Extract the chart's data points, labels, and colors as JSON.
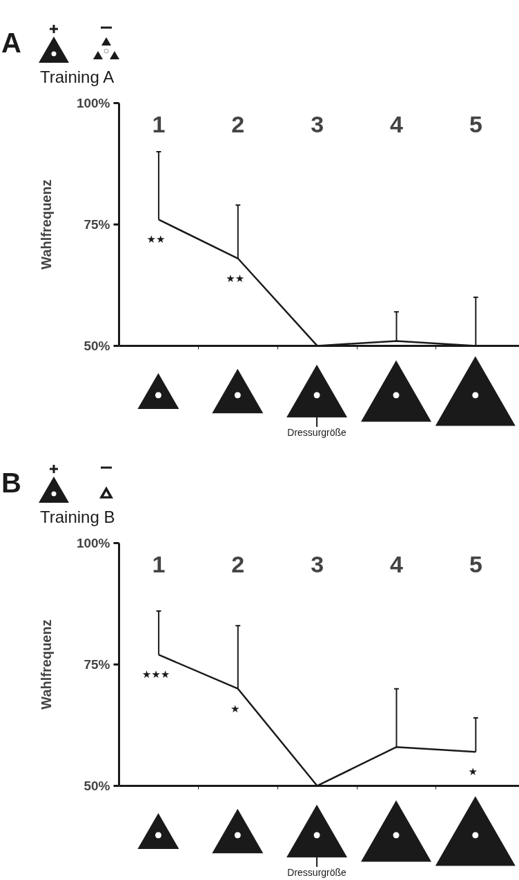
{
  "chart_data": [
    {
      "type": "line",
      "title": "A",
      "subtitle": "Training A",
      "ylabel": "Wahlfrequenz",
      "categories": [
        "1",
        "2",
        "3",
        "4",
        "5"
      ],
      "series": [
        {
          "color": "#1a1a1a",
          "values": [
            76,
            68,
            50,
            51,
            50
          ],
          "errors": [
            [
              76,
              90
            ],
            [
              68,
              79
            ],
            null,
            [
              51,
              57
            ],
            [
              50,
              60
            ]
          ]
        }
      ],
      "ylim": [
        50,
        100
      ],
      "yticks": [
        {
          "value": 50,
          "label": "50%"
        },
        {
          "value": 75,
          "label": "75%"
        },
        {
          "value": 100,
          "label": "100%"
        }
      ],
      "annotations": [
        {
          "text": "★★",
          "x": "1",
          "y": 76
        },
        {
          "text": "★★",
          "x": "2",
          "y": 68
        },
        "Dressurgröße"
      ]
    },
    {
      "type": "line",
      "title": "B",
      "subtitle": "Training B",
      "ylabel": "Wahlfrequenz",
      "categories": [
        "1",
        "2",
        "3",
        "4",
        "5"
      ],
      "series": [
        {
          "color": "#1a1a1a",
          "values": [
            77,
            70,
            50,
            58,
            57
          ],
          "errors": [
            [
              77,
              86
            ],
            [
              70,
              83
            ],
            null,
            [
              58,
              70
            ],
            [
              57,
              64
            ]
          ]
        }
      ],
      "ylim": [
        50,
        100
      ],
      "yticks": [
        {
          "value": 50,
          "label": "50%"
        },
        {
          "value": 75,
          "label": "75%"
        },
        {
          "value": 100,
          "label": "100%"
        }
      ],
      "annotations": [
        {
          "text": "★★★",
          "x": "1",
          "y": 77
        },
        {
          "text": "★",
          "x": "2",
          "y": 70
        },
        {
          "text": "★",
          "x": "5",
          "y": 57
        },
        "Dressurgröße"
      ]
    }
  ]
}
